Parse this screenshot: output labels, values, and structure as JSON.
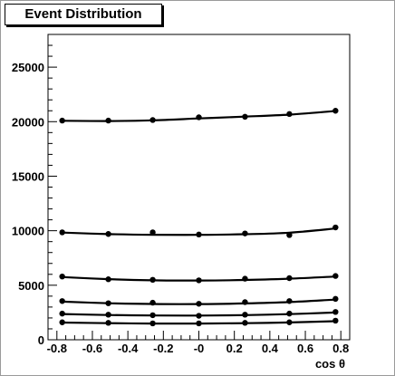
{
  "chart_data": {
    "type": "scatter",
    "title": "Event Distribution",
    "xlabel": "cos θ",
    "ylabel": "",
    "xlim": [
      -0.85,
      0.85
    ],
    "ylim": [
      0,
      28000
    ],
    "xticks": [
      -0.8,
      -0.6,
      -0.4,
      -0.2,
      0,
      0.2,
      0.4,
      0.6,
      0.8
    ],
    "xtick_labels": [
      "-0.8",
      "-0.6",
      "-0.4",
      "-0.2",
      "-0",
      "0.2",
      "0.4",
      "0.6",
      "0.8"
    ],
    "yticks": [
      0,
      5000,
      10000,
      15000,
      20000,
      25000
    ],
    "ytick_labels": [
      "0",
      "5000",
      "10000",
      "15000",
      "20000",
      "25000"
    ],
    "grid": false,
    "x": [
      -0.77,
      -0.51,
      -0.26,
      0.0,
      0.26,
      0.51,
      0.77
    ],
    "series": [
      {
        "values": [
          20100,
          20100,
          20150,
          20400,
          20450,
          20700,
          21000
        ],
        "fit": [
          20080,
          20060,
          20120,
          20300,
          20460,
          20650,
          20980
        ]
      },
      {
        "values": [
          9850,
          9700,
          9850,
          9650,
          9750,
          9600,
          10300
        ],
        "fit": [
          9830,
          9690,
          9630,
          9620,
          9680,
          9820,
          10200
        ]
      },
      {
        "values": [
          5800,
          5550,
          5500,
          5450,
          5600,
          5650,
          5850
        ],
        "fit": [
          5750,
          5560,
          5450,
          5430,
          5480,
          5600,
          5800
        ]
      },
      {
        "values": [
          3550,
          3350,
          3400,
          3300,
          3450,
          3550,
          3750
        ],
        "fit": [
          3500,
          3350,
          3280,
          3270,
          3330,
          3460,
          3680
        ]
      },
      {
        "values": [
          2400,
          2300,
          2250,
          2200,
          2300,
          2400,
          2550
        ],
        "fit": [
          2360,
          2270,
          2230,
          2220,
          2260,
          2350,
          2500
        ]
      },
      {
        "values": [
          1600,
          1550,
          1500,
          1500,
          1550,
          1600,
          1750
        ],
        "fit": [
          1580,
          1520,
          1490,
          1490,
          1520,
          1590,
          1700
        ]
      }
    ]
  }
}
